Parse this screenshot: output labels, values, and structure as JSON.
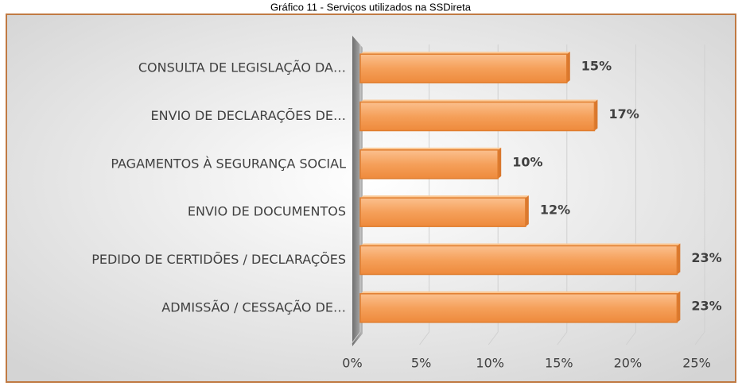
{
  "chart_data": {
    "type": "bar",
    "orientation": "horizontal",
    "title": "Gráfico 11 - Serviços utilizados na SSDireta",
    "categories": [
      "CONSULTA DE LEGISLAÇÃO DA…",
      "ENVIO DE DECLARAÇÕES DE…",
      "PAGAMENTOS À SEGURANÇA SOCIAL",
      "ENVIO DE DOCUMENTOS",
      "PEDIDO DE CERTIDÕES / DECLARAÇÕES",
      "ADMISSÃO / CESSAÇÃO DE…"
    ],
    "values": [
      15,
      17,
      10,
      12,
      23,
      23
    ],
    "value_labels": [
      "15%",
      "17%",
      "10%",
      "12%",
      "23%",
      "23%"
    ],
    "color": "#f5a05a",
    "xlim": [
      0,
      25
    ],
    "xticks": [
      {
        "value": 0,
        "label": "0%"
      },
      {
        "value": 5,
        "label": "5%"
      },
      {
        "value": 10,
        "label": "10%"
      },
      {
        "value": 15,
        "label": "15%"
      },
      {
        "value": 20,
        "label": "20%"
      },
      {
        "value": 25,
        "label": "25%"
      }
    ],
    "grid": true
  }
}
